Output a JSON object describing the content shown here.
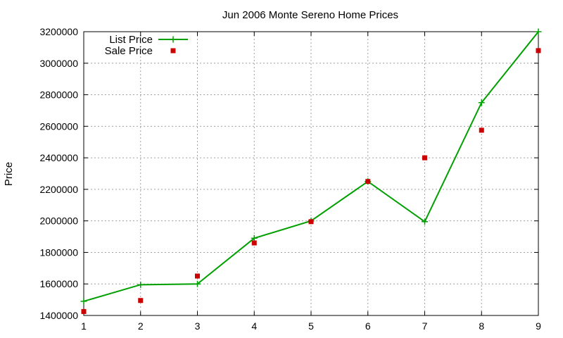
{
  "chart_data": {
    "type": "line",
    "title": "Jun 2006 Monte Sereno Home Prices",
    "xlabel": "",
    "ylabel": "Price",
    "x": [
      1,
      2,
      3,
      4,
      5,
      6,
      7,
      8,
      9
    ],
    "xlim": [
      1,
      9
    ],
    "ylim": [
      1400000,
      3200000
    ],
    "xticks": [
      "1",
      "2",
      "3",
      "4",
      "5",
      "6",
      "7",
      "8",
      "9"
    ],
    "yticks": [
      "1400000",
      "1600000",
      "1800000",
      "2000000",
      "2200000",
      "2400000",
      "2600000",
      "2800000",
      "3000000",
      "3200000"
    ],
    "grid": true,
    "legend_position": "top-left",
    "series": [
      {
        "name": "List Price",
        "style": "line-with-plus-markers",
        "color": "#00a000",
        "values": [
          1490000,
          1595000,
          1600000,
          1890000,
          2000000,
          2250000,
          1995000,
          2750000,
          3200000
        ]
      },
      {
        "name": "Sale Price",
        "style": "square-points",
        "color": "#cc0000",
        "values": [
          1425000,
          1495000,
          1650000,
          1860000,
          1995000,
          2250000,
          2400000,
          2575000,
          3080000
        ]
      }
    ]
  }
}
